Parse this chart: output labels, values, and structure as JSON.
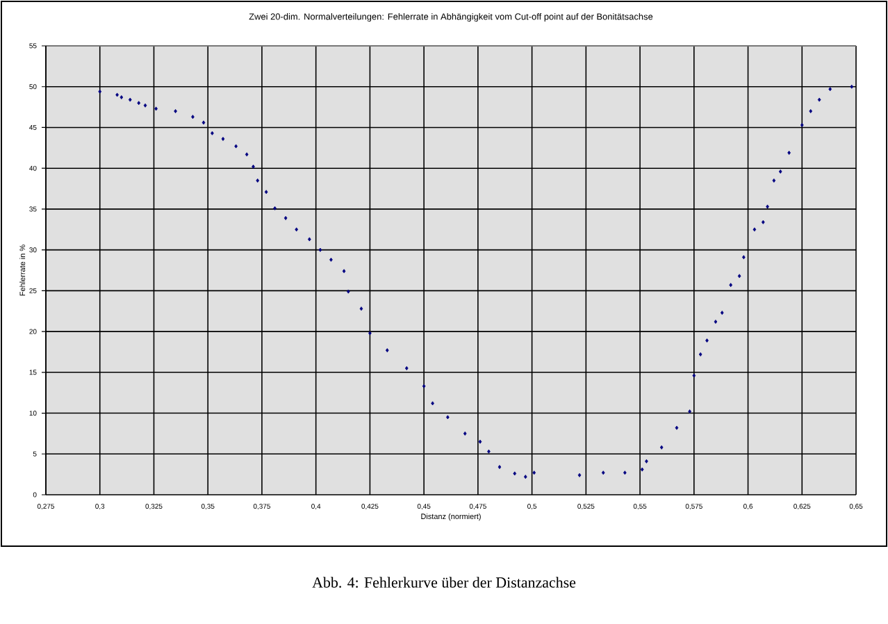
{
  "chart_data": {
    "type": "scatter",
    "title": "Zwei 20-dim. Normalverteilungen: Fehlerrate in Abhängigkeit vom Cut-off point auf der Bonitätsachse",
    "xlabel": "Distanz (normiert)",
    "ylabel": "Fehlerrate in %",
    "annotations": [
      "Abb. 4: Fehlerkurve über der Distanzachse"
    ],
    "xlim": [
      0.275,
      0.65
    ],
    "ylim": [
      0,
      55
    ],
    "xticks": [
      {
        "value": 0.275,
        "label": "0,275"
      },
      {
        "value": 0.3,
        "label": "0,3"
      },
      {
        "value": 0.325,
        "label": "0,325"
      },
      {
        "value": 0.35,
        "label": "0,35"
      },
      {
        "value": 0.375,
        "label": "0,375"
      },
      {
        "value": 0.4,
        "label": "0,4"
      },
      {
        "value": 0.425,
        "label": "0,425"
      },
      {
        "value": 0.45,
        "label": "0,45"
      },
      {
        "value": 0.475,
        "label": "0,475"
      },
      {
        "value": 0.5,
        "label": "0,5"
      },
      {
        "value": 0.525,
        "label": "0,525"
      },
      {
        "value": 0.55,
        "label": "0,55"
      },
      {
        "value": 0.575,
        "label": "0,575"
      },
      {
        "value": 0.6,
        "label": "0,6"
      },
      {
        "value": 0.625,
        "label": "0,625"
      },
      {
        "value": 0.65,
        "label": "0,65"
      }
    ],
    "yticks": [
      0,
      5,
      10,
      15,
      20,
      25,
      30,
      35,
      40,
      45,
      50,
      55
    ],
    "grid": true,
    "marker": "diamond",
    "series": [
      {
        "color": "#000080",
        "x": [
          0.3,
          0.308,
          0.31,
          0.314,
          0.318,
          0.321,
          0.326,
          0.335,
          0.343,
          0.348,
          0.352,
          0.357,
          0.363,
          0.368,
          0.371,
          0.373,
          0.377,
          0.381,
          0.386,
          0.391,
          0.397,
          0.402,
          0.407,
          0.413,
          0.415,
          0.421,
          0.425,
          0.433,
          0.442,
          0.45,
          0.454,
          0.461,
          0.469,
          0.476,
          0.48,
          0.485,
          0.492,
          0.497,
          0.501,
          0.522,
          0.533,
          0.543,
          0.551,
          0.553,
          0.56,
          0.567,
          0.573,
          0.575,
          0.578,
          0.581,
          0.585,
          0.588,
          0.592,
          0.596,
          0.598,
          0.603,
          0.607,
          0.609,
          0.612,
          0.615,
          0.619,
          0.625,
          0.629,
          0.633,
          0.638,
          0.648
        ],
        "values": [
          49.4,
          49.0,
          48.7,
          48.4,
          48.0,
          47.7,
          47.3,
          47.0,
          46.3,
          45.6,
          44.3,
          43.6,
          42.7,
          41.7,
          40.2,
          38.5,
          37.1,
          35.1,
          33.9,
          32.5,
          31.3,
          30.0,
          28.8,
          27.4,
          24.9,
          22.8,
          19.8,
          17.7,
          15.5,
          13.3,
          11.2,
          9.5,
          7.5,
          6.5,
          5.3,
          3.4,
          2.6,
          2.2,
          2.7,
          2.4,
          2.7,
          2.7,
          3.1,
          4.1,
          5.8,
          8.2,
          10.2,
          14.6,
          17.2,
          18.9,
          21.2,
          22.3,
          25.7,
          26.8,
          29.1,
          32.5,
          33.4,
          35.3,
          38.5,
          39.6,
          41.9,
          45.3,
          47.0,
          48.4,
          49.7,
          50.0
        ]
      }
    ]
  }
}
